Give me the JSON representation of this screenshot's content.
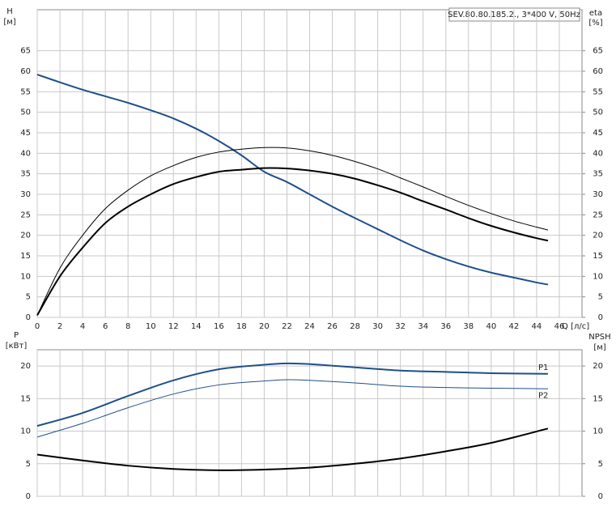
{
  "chart_data": [
    {
      "type": "line",
      "title": "SEV.80.80.185.2., 3*400 V, 50Hz",
      "y_label": "H",
      "y_unit": "[м]",
      "y2_label": "eta",
      "y2_unit": "[%]",
      "x_label": "Q [л/с]",
      "xlim": [
        0,
        48
      ],
      "xticks": [
        0,
        2,
        4,
        6,
        8,
        10,
        12,
        14,
        16,
        18,
        20,
        22,
        24,
        26,
        28,
        30,
        32,
        34,
        36,
        38,
        40,
        42,
        44,
        46
      ],
      "ylim": [
        0,
        75
      ],
      "yticks": [
        0,
        5,
        10,
        15,
        20,
        25,
        30,
        35,
        40,
        45,
        50,
        55,
        60,
        65
      ],
      "y2lim": [
        0,
        75
      ],
      "y2ticks": [
        0,
        5,
        10,
        15,
        20,
        25,
        30,
        35,
        40,
        45,
        50,
        55,
        60,
        65
      ],
      "grid": true,
      "series": [
        {
          "color": "#1f4f8a",
          "width": 2,
          "x": [
            0,
            2,
            4,
            6,
            8,
            10,
            12,
            14,
            16,
            18,
            20,
            22,
            24,
            26,
            28,
            30,
            32,
            34,
            36,
            38,
            40,
            42,
            44,
            45
          ],
          "values": [
            59.2,
            57.3,
            55.5,
            53.9,
            52.3,
            50.5,
            48.5,
            46,
            43,
            39.5,
            35.5,
            33,
            30,
            27,
            24.2,
            21.5,
            18.8,
            16.3,
            14.2,
            12.4,
            10.9,
            9.7,
            8.5,
            8
          ]
        },
        {
          "color": "#000000",
          "width": 2,
          "axis": "y2",
          "x": [
            0,
            2,
            4,
            6,
            8,
            10,
            12,
            14,
            16,
            18,
            20,
            22,
            24,
            26,
            28,
            30,
            32,
            34,
            36,
            38,
            40,
            42,
            44,
            45
          ],
          "values": [
            0.5,
            10,
            17,
            23,
            27,
            30,
            32.5,
            34.2,
            35.5,
            36,
            36.4,
            36.3,
            35.8,
            35,
            33.8,
            32.2,
            30.4,
            28.3,
            26.3,
            24.2,
            22.3,
            20.7,
            19.3,
            18.7
          ]
        },
        {
          "color": "#000000",
          "width": 1,
          "axis": "y2",
          "x": [
            0,
            2,
            4,
            6,
            8,
            10,
            12,
            14,
            16,
            18,
            20,
            22,
            24,
            26,
            28,
            30,
            32,
            34,
            36,
            38,
            40,
            42,
            44,
            45
          ],
          "values": [
            0.5,
            12,
            20,
            26.5,
            31,
            34.5,
            37,
            39,
            40.3,
            41,
            41.4,
            41.3,
            40.6,
            39.5,
            38,
            36.2,
            34,
            31.8,
            29.5,
            27.3,
            25.3,
            23.5,
            22,
            21.3
          ]
        }
      ]
    },
    {
      "type": "line",
      "y_label": "P",
      "y_unit": "[кВт]",
      "y2_label": "NPSH",
      "y2_unit": "[м]",
      "xlim": [
        0,
        48
      ],
      "ylim": [
        0,
        22.5
      ],
      "yticks": [
        0,
        5,
        10,
        15,
        20
      ],
      "y2lim": [
        0,
        22.5
      ],
      "y2ticks": [
        0,
        5,
        10,
        15,
        20
      ],
      "grid": true,
      "series": [
        {
          "name": "P1",
          "color": "#1f4f8a",
          "width": 2,
          "x": [
            0,
            4,
            8,
            12,
            16,
            20,
            22,
            24,
            28,
            32,
            36,
            40,
            45
          ],
          "values": [
            10.8,
            12.8,
            15.4,
            17.8,
            19.5,
            20.2,
            20.4,
            20.3,
            19.8,
            19.3,
            19.1,
            18.9,
            18.8
          ]
        },
        {
          "name": "P2",
          "color": "#1f4f8a",
          "width": 1,
          "x": [
            0,
            4,
            8,
            12,
            16,
            20,
            22,
            24,
            28,
            32,
            36,
            40,
            45
          ],
          "values": [
            9.1,
            11.2,
            13.6,
            15.7,
            17.1,
            17.7,
            17.9,
            17.8,
            17.4,
            16.9,
            16.7,
            16.6,
            16.5
          ]
        },
        {
          "color": "#000000",
          "width": 2,
          "axis": "y2",
          "x": [
            0,
            4,
            8,
            12,
            16,
            20,
            24,
            28,
            32,
            36,
            40,
            45
          ],
          "values": [
            6.4,
            5.5,
            4.7,
            4.2,
            4,
            4.1,
            4.4,
            5,
            5.8,
            6.9,
            8.2,
            10.4
          ]
        }
      ]
    }
  ]
}
